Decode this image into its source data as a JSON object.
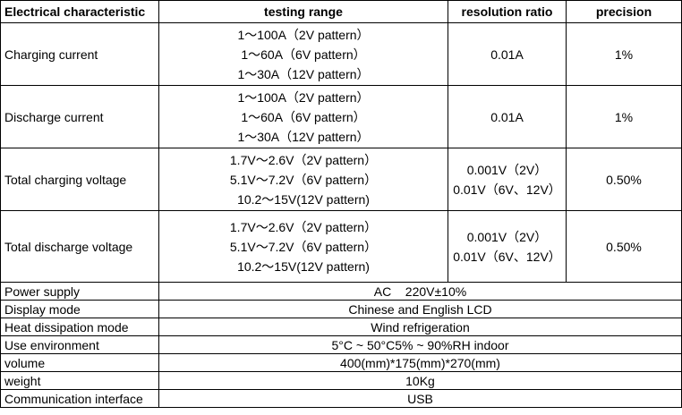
{
  "headers": [
    "Electrical characteristic",
    "testing range",
    "resolution ratio",
    "precision"
  ],
  "rows": [
    {
      "name": "Charging current",
      "range": [
        "1～100A（2V pattern）",
        "1～60A（6V pattern）",
        "1～30A（12V pattern）"
      ],
      "resolution": [
        "0.01A"
      ],
      "precision": "1%"
    },
    {
      "name": "Discharge current",
      "range": [
        "1～100A（2V pattern）",
        "1～60A（6V pattern）",
        "1～30A（12V pattern）"
      ],
      "resolution": [
        "0.01A"
      ],
      "precision": "1%"
    },
    {
      "name": "Total charging voltage",
      "range": [
        "1.7V～2.6V（2V pattern）",
        "5.1V～7.2V（6V pattern）",
        "10.2～15V(12V pattern)"
      ],
      "resolution": [
        "0.001V（2V）",
        "0.01V（6V、12V）"
      ],
      "precision": "0.50%"
    },
    {
      "name": "Total discharge voltage",
      "range": [
        "1.7V～2.6V（2V pattern）",
        "5.1V～7.2V（6V pattern）",
        "10.2～15V(12V pattern)"
      ],
      "resolution": [
        "0.001V（2V）",
        "0.01V（6V、12V）"
      ],
      "precision": "0.50%"
    }
  ],
  "specs": [
    {
      "name": "Power supply",
      "value": "AC    220V±10%"
    },
    {
      "name": "Display mode",
      "value": "Chinese and English LCD"
    },
    {
      "name": "Heat dissipation mode",
      "value": "Wind refrigeration"
    },
    {
      "name": "Use environment",
      "value": "5°C ~ 50°C5% ~ 90%RH indoor"
    },
    {
      "name": "volume",
      "value": "400(mm)*175(mm)*270(mm)"
    },
    {
      "name": "weight",
      "value": "10Kg"
    },
    {
      "name": "Communication interface",
      "value": "USB"
    }
  ]
}
